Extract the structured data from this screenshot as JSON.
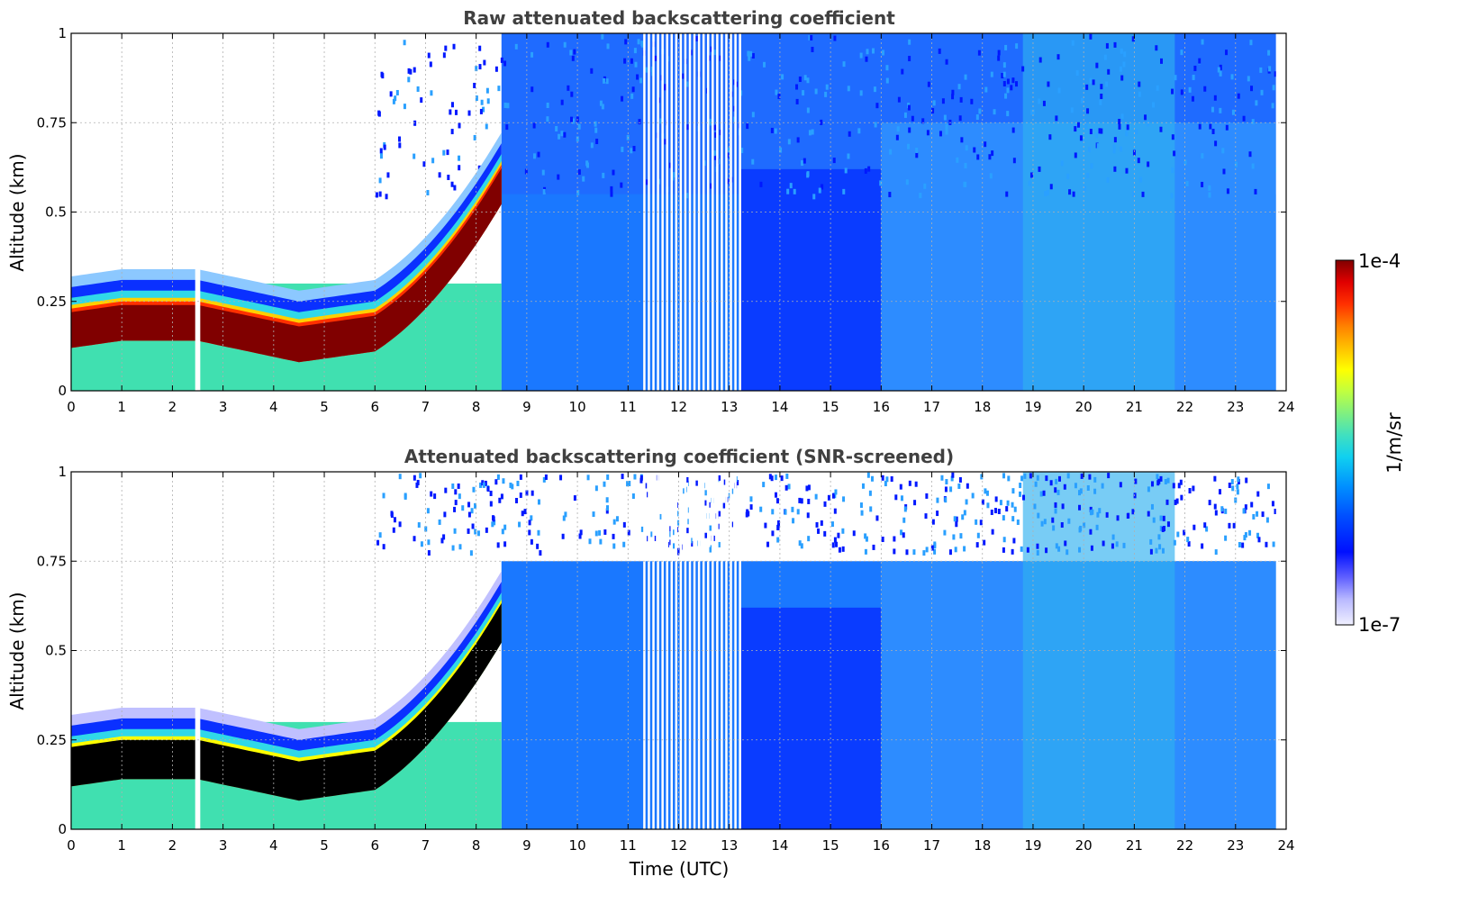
{
  "chart_data": [
    {
      "type": "heatmap",
      "title": "Raw attenuated backscattering coefficient",
      "ylabel": "Altitude (km)",
      "xlabel": "",
      "xlim": [
        0,
        24
      ],
      "ylim": [
        0,
        1
      ],
      "x_ticks": [
        "0",
        "1",
        "2",
        "3",
        "4",
        "5",
        "6",
        "7",
        "8",
        "9",
        "10",
        "11",
        "12",
        "13",
        "14",
        "15",
        "16",
        "17",
        "18",
        "19",
        "20",
        "21",
        "22",
        "23",
        "24"
      ],
      "y_ticks": [
        "0",
        "0.25",
        "0.5",
        "0.75",
        "1"
      ],
      "grid": true,
      "color_scale": "log",
      "cmap": "jet",
      "data_gaps_hours": [
        [
          2.45,
          2.55
        ],
        [
          11.3,
          11.75
        ],
        [
          11.75,
          13.25
        ]
      ],
      "data_end_hour": 23.8
    },
    {
      "type": "heatmap",
      "title": "Attenuated backscattering coefficient (SNR-screened)",
      "ylabel": "Altitude (km)",
      "xlabel": "Time (UTC)",
      "xlim": [
        0,
        24
      ],
      "ylim": [
        0,
        1
      ],
      "x_ticks": [
        "0",
        "1",
        "2",
        "3",
        "4",
        "5",
        "6",
        "7",
        "8",
        "9",
        "10",
        "11",
        "12",
        "13",
        "14",
        "15",
        "16",
        "17",
        "18",
        "19",
        "20",
        "21",
        "22",
        "23",
        "24"
      ],
      "y_ticks": [
        "0",
        "0.25",
        "0.5",
        "0.75",
        "1"
      ],
      "grid": true,
      "color_scale": "log",
      "cmap": "jet",
      "saturated_color": "#000000",
      "data_gaps_hours": [
        [
          2.45,
          2.55
        ],
        [
          11.3,
          11.75
        ],
        [
          11.75,
          13.25
        ]
      ],
      "data_end_hour": 23.8
    }
  ],
  "colorbar": {
    "max_label": "1e-4",
    "min_label": "1e-7",
    "label": "1/m/sr",
    "colors": [
      "#f0f0ff",
      "#b8b8ff",
      "#6060ff",
      "#0010ff",
      "#0050ff",
      "#0090ff",
      "#10d0f0",
      "#40e0c0",
      "#80f080",
      "#c0ff40",
      "#ffff00",
      "#ffc000",
      "#ff8000",
      "#ff3000",
      "#e00000",
      "#800000"
    ]
  }
}
